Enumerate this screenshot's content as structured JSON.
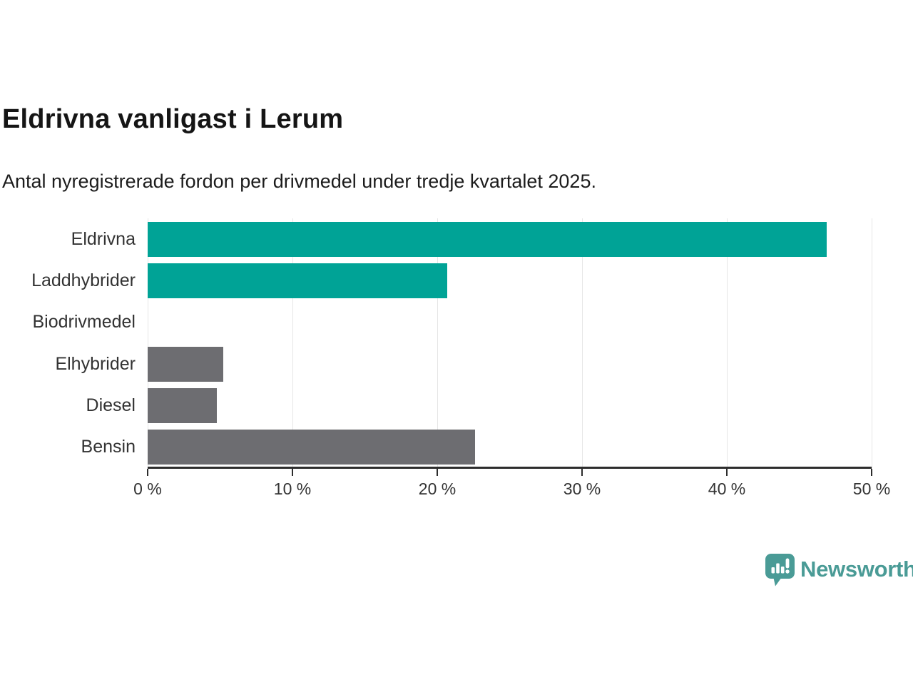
{
  "title": "Eldrivna vanligast i Lerum",
  "subtitle": "Antal nyregistrerade fordon per drivmedel under tredje kvartalet 2025.",
  "logo": {
    "text": "Newsworthy",
    "color": "#4a9b96",
    "icon": "speech-bubble-bar-chart-icon"
  },
  "colors": {
    "highlight": "#00a396",
    "muted": "#6d6d71",
    "axis": "#2d2d2d",
    "gridline": "#e6e6e6"
  },
  "chart_data": {
    "type": "bar",
    "orientation": "horizontal",
    "title": "Eldrivna vanligast i Lerum",
    "subtitle": "Antal nyregistrerade fordon per drivmedel under tredje kvartalet 2025.",
    "categories": [
      "Eldrivna",
      "Laddhybrider",
      "Biodrivmedel",
      "Elhybrider",
      "Diesel",
      "Bensin"
    ],
    "values": [
      46.9,
      20.7,
      0,
      5.2,
      4.8,
      22.6
    ],
    "bar_colors": [
      "#00a396",
      "#00a396",
      "#6d6d71",
      "#6d6d71",
      "#6d6d71",
      "#6d6d71"
    ],
    "xlabel": "",
    "ylabel": "",
    "xlim": [
      0,
      50
    ],
    "x_ticks": [
      0,
      10,
      20,
      30,
      40,
      50
    ],
    "x_tick_labels": [
      "0 %",
      "10 %",
      "20 %",
      "30 %",
      "40 %",
      "50 %"
    ],
    "grid": "vertical-only",
    "legend": "none"
  }
}
